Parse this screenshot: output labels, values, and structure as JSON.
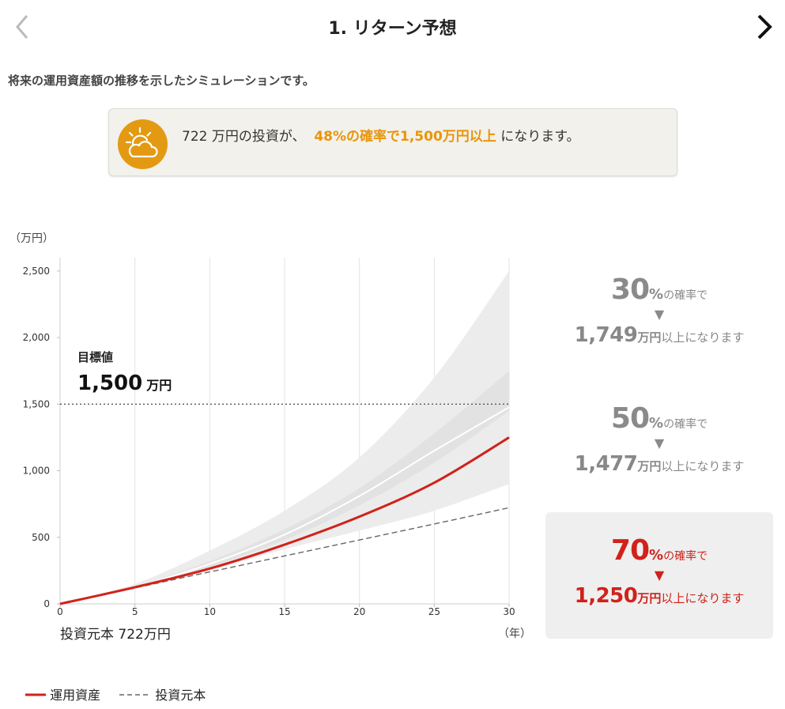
{
  "header": {
    "title": "1. リターン予想",
    "prev_icon": "chevron-left-icon",
    "next_icon": "chevron-right-icon"
  },
  "intro": "将来の運用資産額の推移を示したシミュレーションです。",
  "summary": {
    "icon": "sun-cloud-icon",
    "text_before": "722 万円の投資が、",
    "highlight": "48%の確率で1,500万円以上",
    "text_after": " になります。",
    "accent": "#e8950a"
  },
  "colors": {
    "asset": "#d0221a",
    "principal": "#666666",
    "band_outer": "#ececec",
    "band_inner": "#e2e2e2",
    "card_gray": "#888888",
    "card_red": "#d0221a"
  },
  "chart_data": {
    "type": "line",
    "y_unit": "（万円）",
    "x_unit": "（年）",
    "xlim": [
      0,
      30
    ],
    "ylim": [
      0,
      2600
    ],
    "x_ticks": [
      "0",
      "5",
      "10",
      "15",
      "20",
      "25",
      "30"
    ],
    "y_ticks": [
      "0",
      "500",
      "1,000",
      "1,500",
      "2,000",
      "2,500"
    ],
    "target": {
      "label": "目標値",
      "value": 1500,
      "value_text": "1,500",
      "unit": "万円"
    },
    "principal_label": "投資元本 722万円",
    "x": [
      0,
      5,
      10,
      15,
      20,
      25,
      30
    ],
    "series": [
      {
        "name": "運用資産",
        "values": [
          0,
          125,
          265,
          445,
          655,
          910,
          1250
        ]
      },
      {
        "name": "投資元本",
        "values": [
          0,
          120,
          240,
          360,
          480,
          600,
          722
        ]
      }
    ],
    "bands": [
      {
        "upper": [
          0,
          150,
          400,
          700,
          1100,
          1700,
          2500
        ],
        "lower": [
          0,
          110,
          250,
          410,
          550,
          700,
          900
        ]
      },
      {
        "upper": [
          0,
          135,
          320,
          560,
          870,
          1280,
          1749
        ],
        "lower": [
          0,
          118,
          275,
          480,
          740,
          1060,
          1450
        ]
      }
    ],
    "median_line": [
      0,
      128,
      300,
      520,
      810,
      1150,
      1477
    ],
    "legend": [
      {
        "label": "運用資産",
        "style": "solid"
      },
      {
        "label": "投資元本",
        "style": "dashed"
      }
    ]
  },
  "probabilities": [
    {
      "percent": "30",
      "pct_sign": "%",
      "label": "の確率で",
      "arrow": "▼",
      "amount": "1,749",
      "unit": "万円",
      "suffix": "以上になります",
      "highlight": false
    },
    {
      "percent": "50",
      "pct_sign": "%",
      "label": "の確率で",
      "arrow": "▼",
      "amount": "1,477",
      "unit": "万円",
      "suffix": "以上になります",
      "highlight": false
    },
    {
      "percent": "70",
      "pct_sign": "%",
      "label": "の確率で",
      "arrow": "▼",
      "amount": "1,250",
      "unit": "万円",
      "suffix": "以上になります",
      "highlight": true
    }
  ]
}
